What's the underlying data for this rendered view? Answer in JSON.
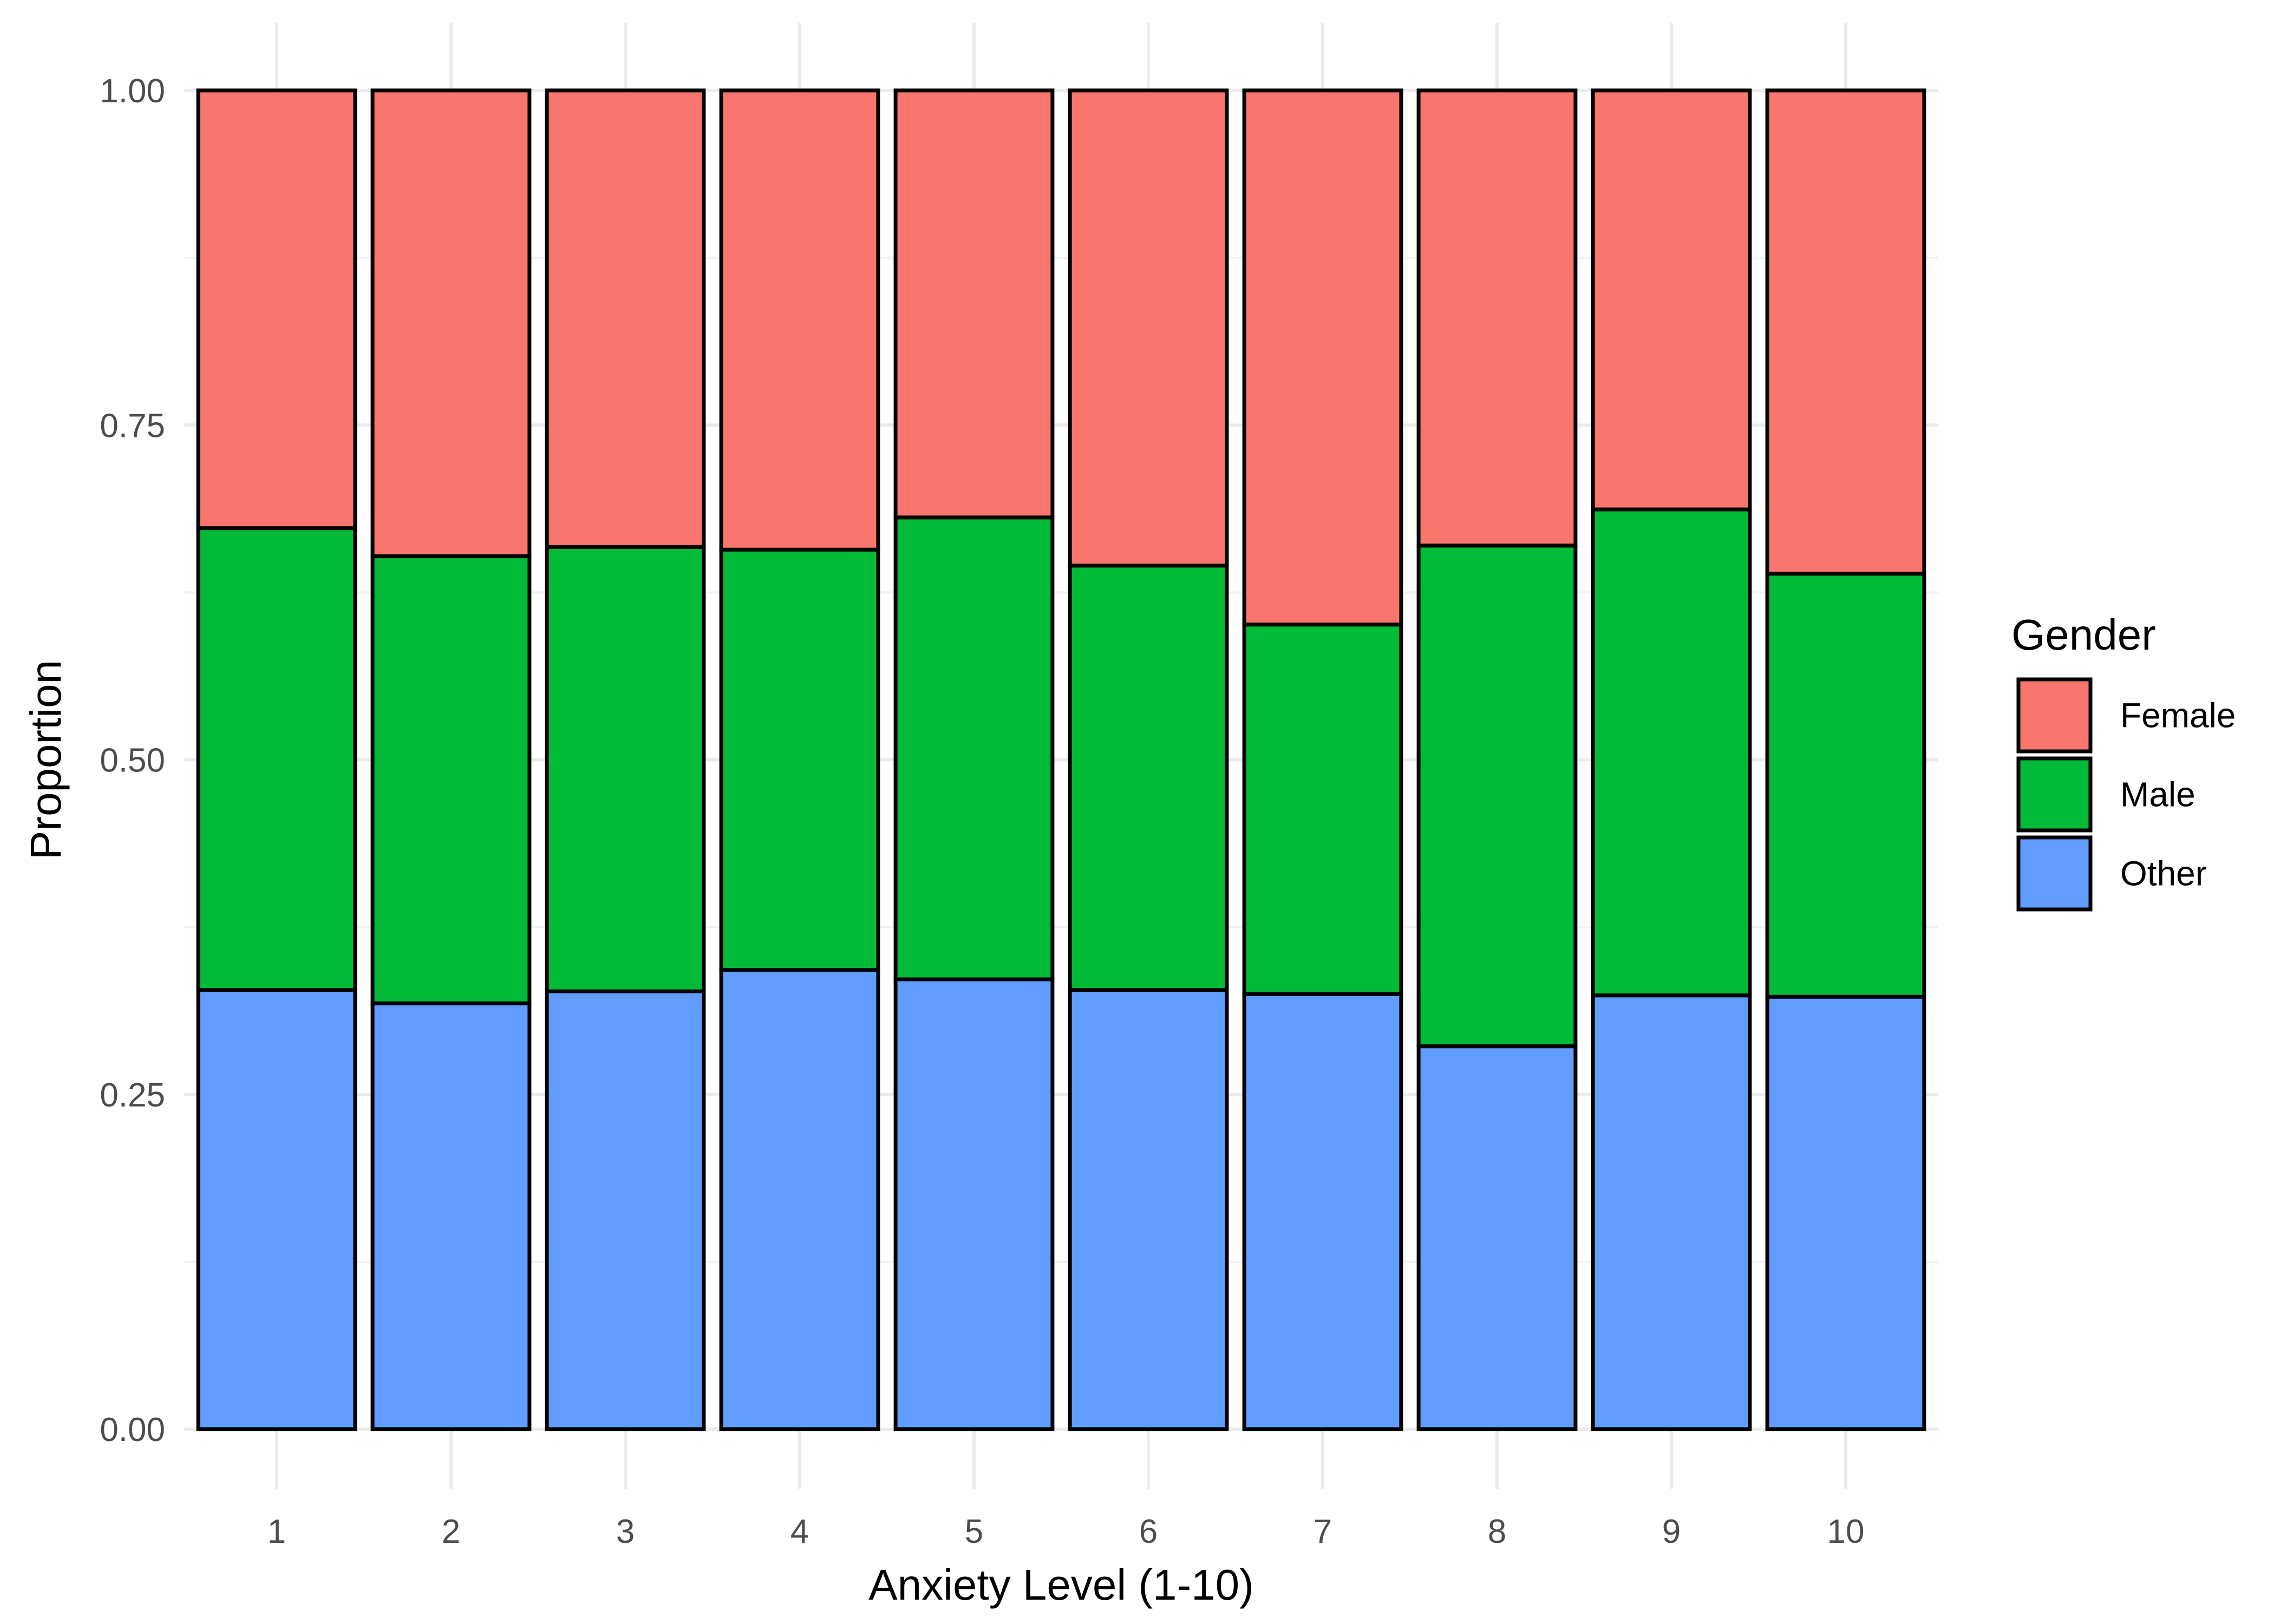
{
  "chart_data": {
    "type": "bar",
    "stacked": true,
    "xlabel": "Anxiety Level (1-10)",
    "ylabel": "Proportion",
    "ylim": [
      0,
      1
    ],
    "y_ticks": [
      "0.00",
      "0.25",
      "0.50",
      "0.75",
      "1.00"
    ],
    "categories": [
      "1",
      "2",
      "3",
      "4",
      "5",
      "6",
      "7",
      "8",
      "9",
      "10"
    ],
    "legend_title": "Gender",
    "legend_position": "right",
    "grid": true,
    "series": [
      {
        "name": "Female",
        "color": "#F8766D",
        "values": [
          0.327,
          0.348,
          0.341,
          0.343,
          0.319,
          0.355,
          0.399,
          0.34,
          0.313,
          0.361
        ]
      },
      {
        "name": "Male",
        "color": "#00BA38",
        "values": [
          0.345,
          0.334,
          0.332,
          0.314,
          0.345,
          0.317,
          0.276,
          0.374,
          0.363,
          0.316
        ]
      },
      {
        "name": "Other",
        "color": "#619CFF",
        "values": [
          0.328,
          0.318,
          0.327,
          0.343,
          0.336,
          0.328,
          0.325,
          0.286,
          0.324,
          0.323
        ]
      }
    ]
  }
}
